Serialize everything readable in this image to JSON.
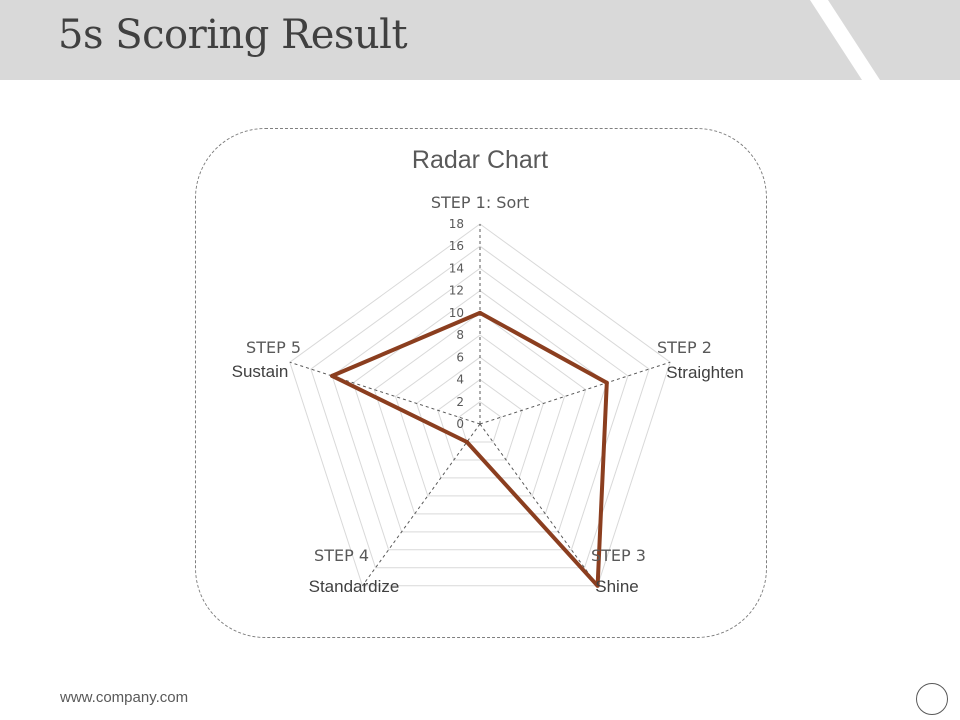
{
  "slide": {
    "title": "5s Scoring Result",
    "footer_url": "www.company.com"
  },
  "chart_data": {
    "type": "radar",
    "title": "Radar Chart",
    "axes": [
      "STEP 1: Sort",
      "STEP 2",
      "STEP 3",
      "STEP 4",
      "STEP 5"
    ],
    "axis_sublabels": [
      "",
      "Straighten",
      "Shine",
      "Standardize",
      "Sustain"
    ],
    "scale": {
      "min": 0,
      "max": 18,
      "step": 2
    },
    "tick_labels": [
      "0",
      "2",
      "4",
      "6",
      "8",
      "10",
      "12",
      "14",
      "16",
      "18"
    ],
    "series": [
      {
        "values": [
          10,
          12,
          18,
          2,
          14
        ],
        "color": "#8b3e1f"
      }
    ],
    "grid": true,
    "legend": "none"
  }
}
